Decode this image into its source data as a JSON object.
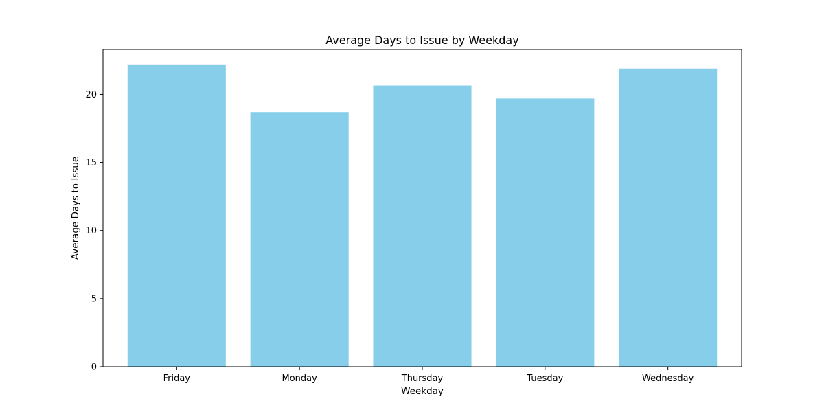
{
  "chart_data": {
    "type": "bar",
    "title": "Average Days to Issue by Weekday",
    "xlabel": "Weekday",
    "ylabel": "Average Days to Issue",
    "categories": [
      "Friday",
      "Monday",
      "Thursday",
      "Tuesday",
      "Wednesday"
    ],
    "values": [
      22.2,
      18.7,
      20.65,
      19.7,
      21.9
    ],
    "ylim": [
      0,
      23.3
    ],
    "yticks": [
      0,
      5,
      10,
      15,
      20
    ],
    "bar_color": "#87ceeb",
    "grid": false,
    "legend": "none"
  }
}
